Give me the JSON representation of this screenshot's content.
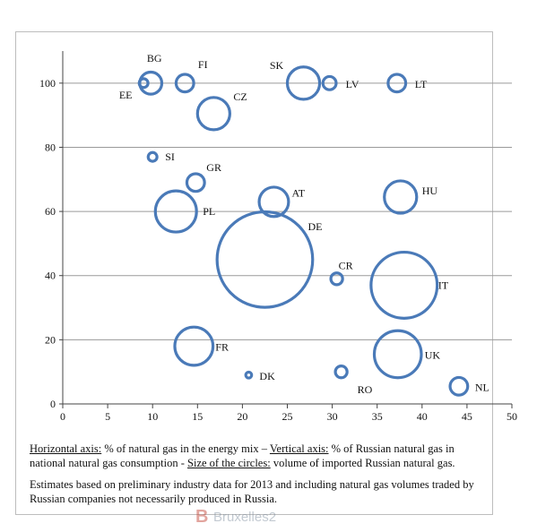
{
  "chart_data": {
    "type": "scatter",
    "xlim": [
      0,
      50
    ],
    "ylim": [
      0,
      110
    ],
    "x_ticks": [
      "0",
      "5",
      "10",
      "15",
      "20",
      "25",
      "30",
      "35",
      "40",
      "45",
      "50"
    ],
    "y_ticks": [
      "0",
      "20",
      "40",
      "60",
      "80",
      "100"
    ],
    "grid": "horizontal",
    "bubble_color": "#4a7ab8",
    "points": [
      {
        "label": "BG",
        "x": 9.8,
        "y": 100,
        "size": 1.5
      },
      {
        "label": "EE",
        "x": 9.0,
        "y": 100,
        "size": 0.6
      },
      {
        "label": "FI",
        "x": 13.6,
        "y": 100,
        "size": 1.2
      },
      {
        "label": "SK",
        "x": 26.8,
        "y": 100,
        "size": 2.2
      },
      {
        "label": "LV",
        "x": 29.7,
        "y": 100,
        "size": 0.9
      },
      {
        "label": "LT",
        "x": 37.2,
        "y": 100,
        "size": 1.2
      },
      {
        "label": "CZ",
        "x": 16.8,
        "y": 90.5,
        "size": 2.2
      },
      {
        "label": "SI",
        "x": 10.0,
        "y": 77,
        "size": 0.6
      },
      {
        "label": "GR",
        "x": 14.8,
        "y": 69,
        "size": 1.2
      },
      {
        "label": "AT",
        "x": 23.5,
        "y": 63,
        "size": 2.0
      },
      {
        "label": "HU",
        "x": 37.6,
        "y": 64.5,
        "size": 2.2
      },
      {
        "label": "PL",
        "x": 12.6,
        "y": 60,
        "size": 2.8
      },
      {
        "label": "DE",
        "x": 22.5,
        "y": 45,
        "size": 6.5
      },
      {
        "label": "CR",
        "x": 30.5,
        "y": 39,
        "size": 0.8
      },
      {
        "label": "IT",
        "x": 38.0,
        "y": 37,
        "size": 4.5
      },
      {
        "label": "FR",
        "x": 14.6,
        "y": 18,
        "size": 2.6
      },
      {
        "label": "UK",
        "x": 37.3,
        "y": 15.5,
        "size": 3.2
      },
      {
        "label": "DK",
        "x": 20.7,
        "y": 9,
        "size": 0.4
      },
      {
        "label": "RO",
        "x": 31.0,
        "y": 10,
        "size": 0.8
      },
      {
        "label": "NL",
        "x": 44.1,
        "y": 5.5,
        "size": 1.2
      }
    ]
  },
  "caption": {
    "h_axis_label": "Horizontal axis:",
    "h_axis_text": " % of natural gas in the energy mix – ",
    "v_axis_label": "Vertical axis:",
    "v_axis_text": " % of Russian natural gas in national natural gas consumption  - ",
    "size_label": "Size of the circles:",
    "size_text": " volume of imported Russian natural gas.",
    "note": "Estimates based on preliminary industry data for 2013 and including natural gas volumes traded by Russian companies not necessarily produced in Russia."
  },
  "watermark": {
    "mark": "B",
    "text": "Bruxelles2"
  }
}
